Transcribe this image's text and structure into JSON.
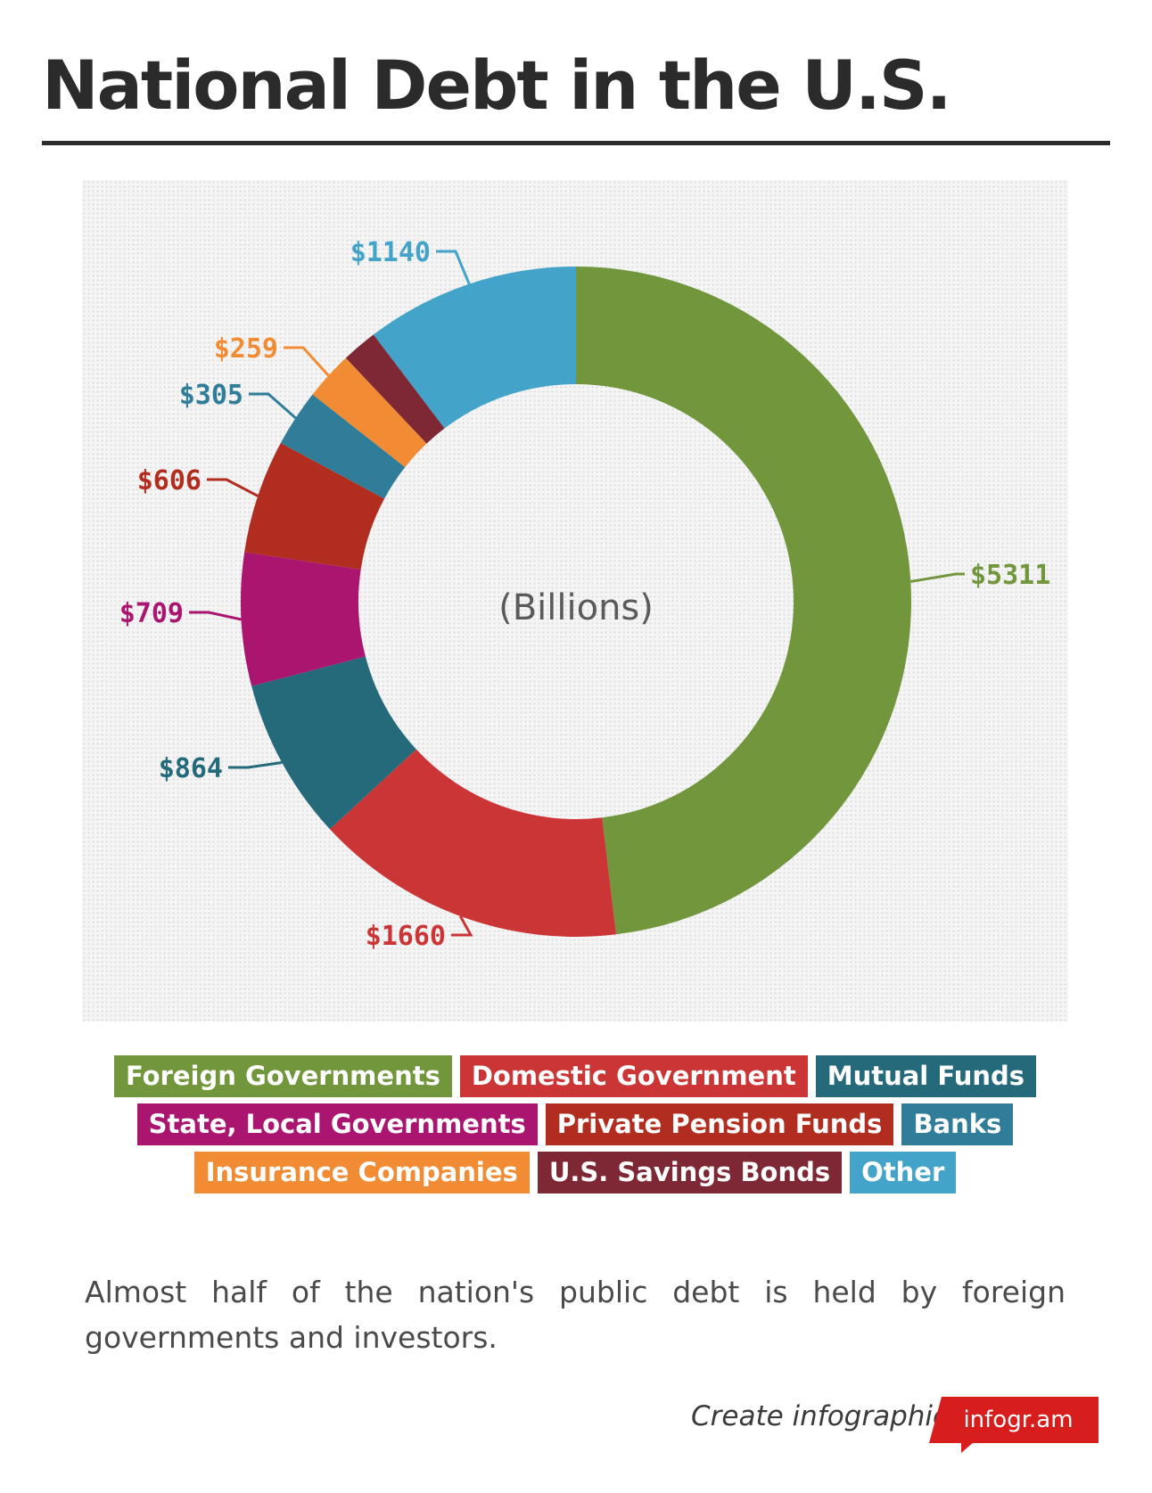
{
  "title": "National Debt in the U.S.",
  "center_label": "(Billions)",
  "caption": "Almost half of the nation's public debt is held by foreign governments and investors.",
  "credit": {
    "text": "Create infographics",
    "brand": "infogr.am",
    "brand_color": "#d81d1d"
  },
  "chart_data": {
    "type": "pie",
    "donut": true,
    "slices": [
      {
        "name": "Foreign Governments",
        "value": 5311,
        "label": "$5311",
        "color": "#71963c"
      },
      {
        "name": "Domestic Government",
        "value": 1660,
        "label": "$1660",
        "color": "#cc3535"
      },
      {
        "name": "Mutual Funds",
        "value": 864,
        "label": "$864",
        "color": "#256a7b"
      },
      {
        "name": "State, Local Governments",
        "value": 709,
        "label": "$709",
        "color": "#aa1570"
      },
      {
        "name": "Private Pension Funds",
        "value": 606,
        "label": "$606",
        "color": "#b02d1f"
      },
      {
        "name": "Banks",
        "value": 305,
        "label": "$305",
        "color": "#2f7d99"
      },
      {
        "name": "Insurance Companies",
        "value": 259,
        "label": "$259",
        "color": "#f28c34"
      },
      {
        "name": "U.S. Savings Bonds",
        "value": 190,
        "label": "",
        "color": "#7e2835"
      },
      {
        "name": "Other",
        "value": 1140,
        "label": "$1140",
        "color": "#43a3c9"
      }
    ],
    "legend_rows": [
      [
        0,
        1,
        2
      ],
      [
        3,
        4,
        5
      ],
      [
        6,
        7,
        8
      ]
    ],
    "legend_position": "bottom"
  }
}
